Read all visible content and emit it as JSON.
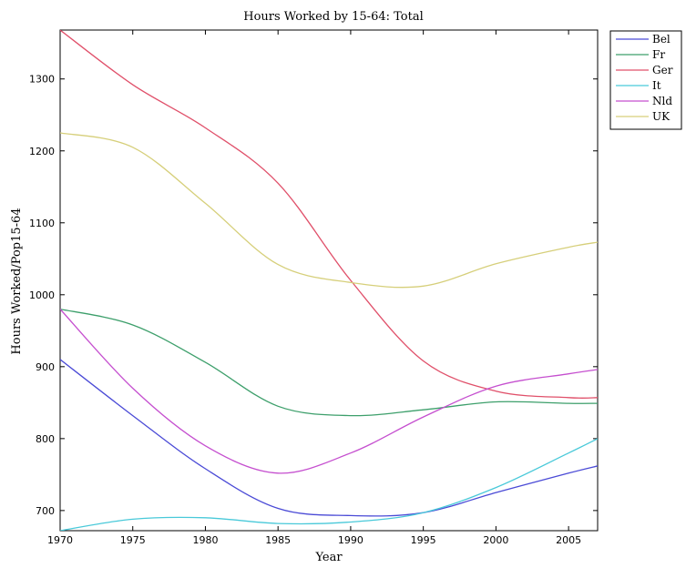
{
  "chart_data": {
    "type": "line",
    "title": "Hours Worked by 15-64: Total",
    "xlabel": "Year",
    "ylabel": "Hours Worked/Pop15-64",
    "xlim": [
      1970,
      2007
    ],
    "ylim": [
      672,
      1368
    ],
    "xticks": [
      1970,
      1975,
      1980,
      1985,
      1990,
      1995,
      2000,
      2005
    ],
    "yticks": [
      700,
      800,
      900,
      1000,
      1100,
      1200,
      1300
    ],
    "grid": false,
    "legend": "outside-top-right",
    "x": [
      1970,
      1975,
      1980,
      1985,
      1990,
      1995,
      2000,
      2005,
      2007
    ],
    "series": [
      {
        "name": "Bel",
        "color": "#4a4ad6",
        "values": [
          910,
          832,
          758,
          703,
          693,
          697,
          725,
          752,
          762
        ]
      },
      {
        "name": "Fr",
        "color": "#3d9f6b",
        "values": [
          980,
          958,
          906,
          845,
          832,
          840,
          851,
          849,
          849
        ]
      },
      {
        "name": "Ger",
        "color": "#e0506a",
        "values": [
          1368,
          1292,
          1232,
          1155,
          1020,
          908,
          866,
          857,
          857
        ]
      },
      {
        "name": "It",
        "color": "#49c9d9",
        "values": [
          672,
          688,
          690,
          682,
          684,
          697,
          732,
          780,
          800
        ]
      },
      {
        "name": "Nld",
        "color": "#c54fcf",
        "values": [
          980,
          870,
          790,
          752,
          780,
          830,
          873,
          890,
          896
        ]
      },
      {
        "name": "UK",
        "color": "#d6cf7a",
        "values": [
          1225,
          1205,
          1127,
          1042,
          1017,
          1012,
          1043,
          1066,
          1073
        ]
      }
    ]
  }
}
